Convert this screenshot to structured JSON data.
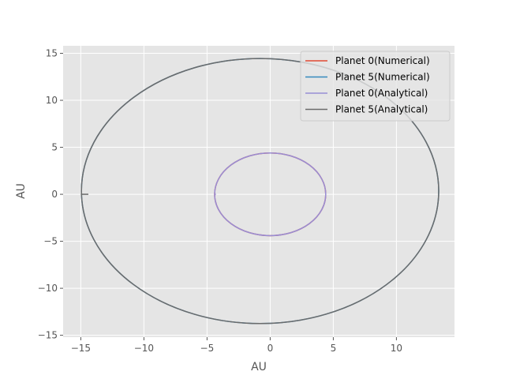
{
  "chart_data": {
    "type": "line",
    "title": "",
    "xlabel": "AU",
    "ylabel": "AU",
    "xlim": [
      -16.4,
      14.6
    ],
    "ylim": [
      -15.2,
      15.8
    ],
    "xticks": [
      -15,
      -10,
      -5,
      0,
      5,
      10
    ],
    "yticks": [
      -15,
      -10,
      -5,
      0,
      5,
      10,
      15
    ],
    "xtick_labels": [
      "−15",
      "−10",
      "−5",
      "0",
      "5",
      "10"
    ],
    "ytick_labels": [
      "−15",
      "−10",
      "−5",
      "0",
      "5",
      "10",
      "15"
    ],
    "grid": true,
    "background": "#e5e5e5",
    "legend": "top-right",
    "series": [
      {
        "name": "Planet 0(Numerical)",
        "color": "#e24a33",
        "orbit": {
          "cx": 0.0,
          "cy": 0.0,
          "rx": 4.4,
          "ry": 4.4
        }
      },
      {
        "name": "Planet 5(Numerical)",
        "color": "#348abd",
        "orbit": {
          "cx": -0.8,
          "cy": 0.35,
          "rx": 14.15,
          "ry": 14.1
        }
      },
      {
        "name": "Planet 0(Analytical)",
        "color": "#988ed5",
        "orbit": {
          "cx": 0.0,
          "cy": 0.0,
          "rx": 4.4,
          "ry": 4.4
        },
        "start_segment": [
          [
            -4.4,
            0.0
          ],
          [
            -4.3,
            0.0
          ]
        ]
      },
      {
        "name": "Planet 5(Analytical)",
        "color": "#6b6b6b",
        "orbit": {
          "cx": -0.8,
          "cy": 0.35,
          "rx": 14.15,
          "ry": 14.1
        },
        "start_segment": [
          [
            -15.0,
            0.0
          ],
          [
            -14.4,
            0.0
          ]
        ]
      }
    ]
  }
}
